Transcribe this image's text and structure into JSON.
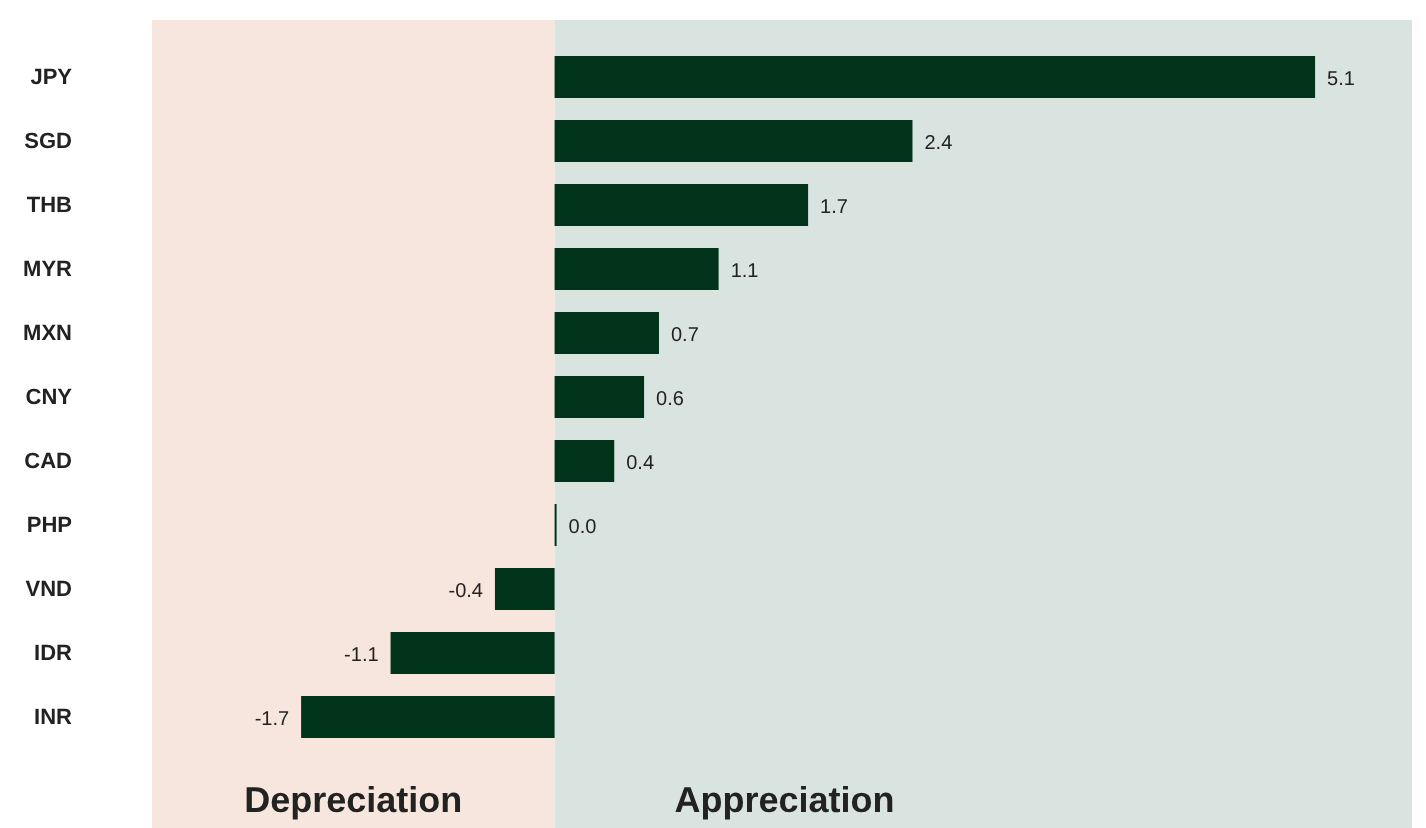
{
  "chart_data": {
    "type": "bar",
    "orientation": "horizontal",
    "categories": [
      "JPY",
      "SGD",
      "THB",
      "MYR",
      "MXN",
      "CNY",
      "CAD",
      "PHP",
      "VND",
      "IDR",
      "INR"
    ],
    "values": [
      5.1,
      2.4,
      1.7,
      1.1,
      0.7,
      0.6,
      0.4,
      0.0,
      -0.4,
      -1.1,
      -1.7
    ],
    "color": "#003319",
    "value_labels": [
      "5.1",
      "2.4",
      "1.7",
      "1.1",
      "0.7",
      "0.6",
      "0.4",
      "0.0",
      "-0.4",
      "-1.1",
      "-1.7"
    ],
    "xlim": [
      -2.7,
      5.75
    ],
    "tick_labels": "y",
    "grid": false,
    "legend": false,
    "bands": [
      {
        "axis": "x",
        "from": -2.7,
        "to": 0,
        "label": "Depreciation",
        "color": "#f7e6dd"
      },
      {
        "axis": "x",
        "from": 0,
        "to": 5.75,
        "label": "Appreciation",
        "color": "#d9e3df"
      }
    ]
  }
}
